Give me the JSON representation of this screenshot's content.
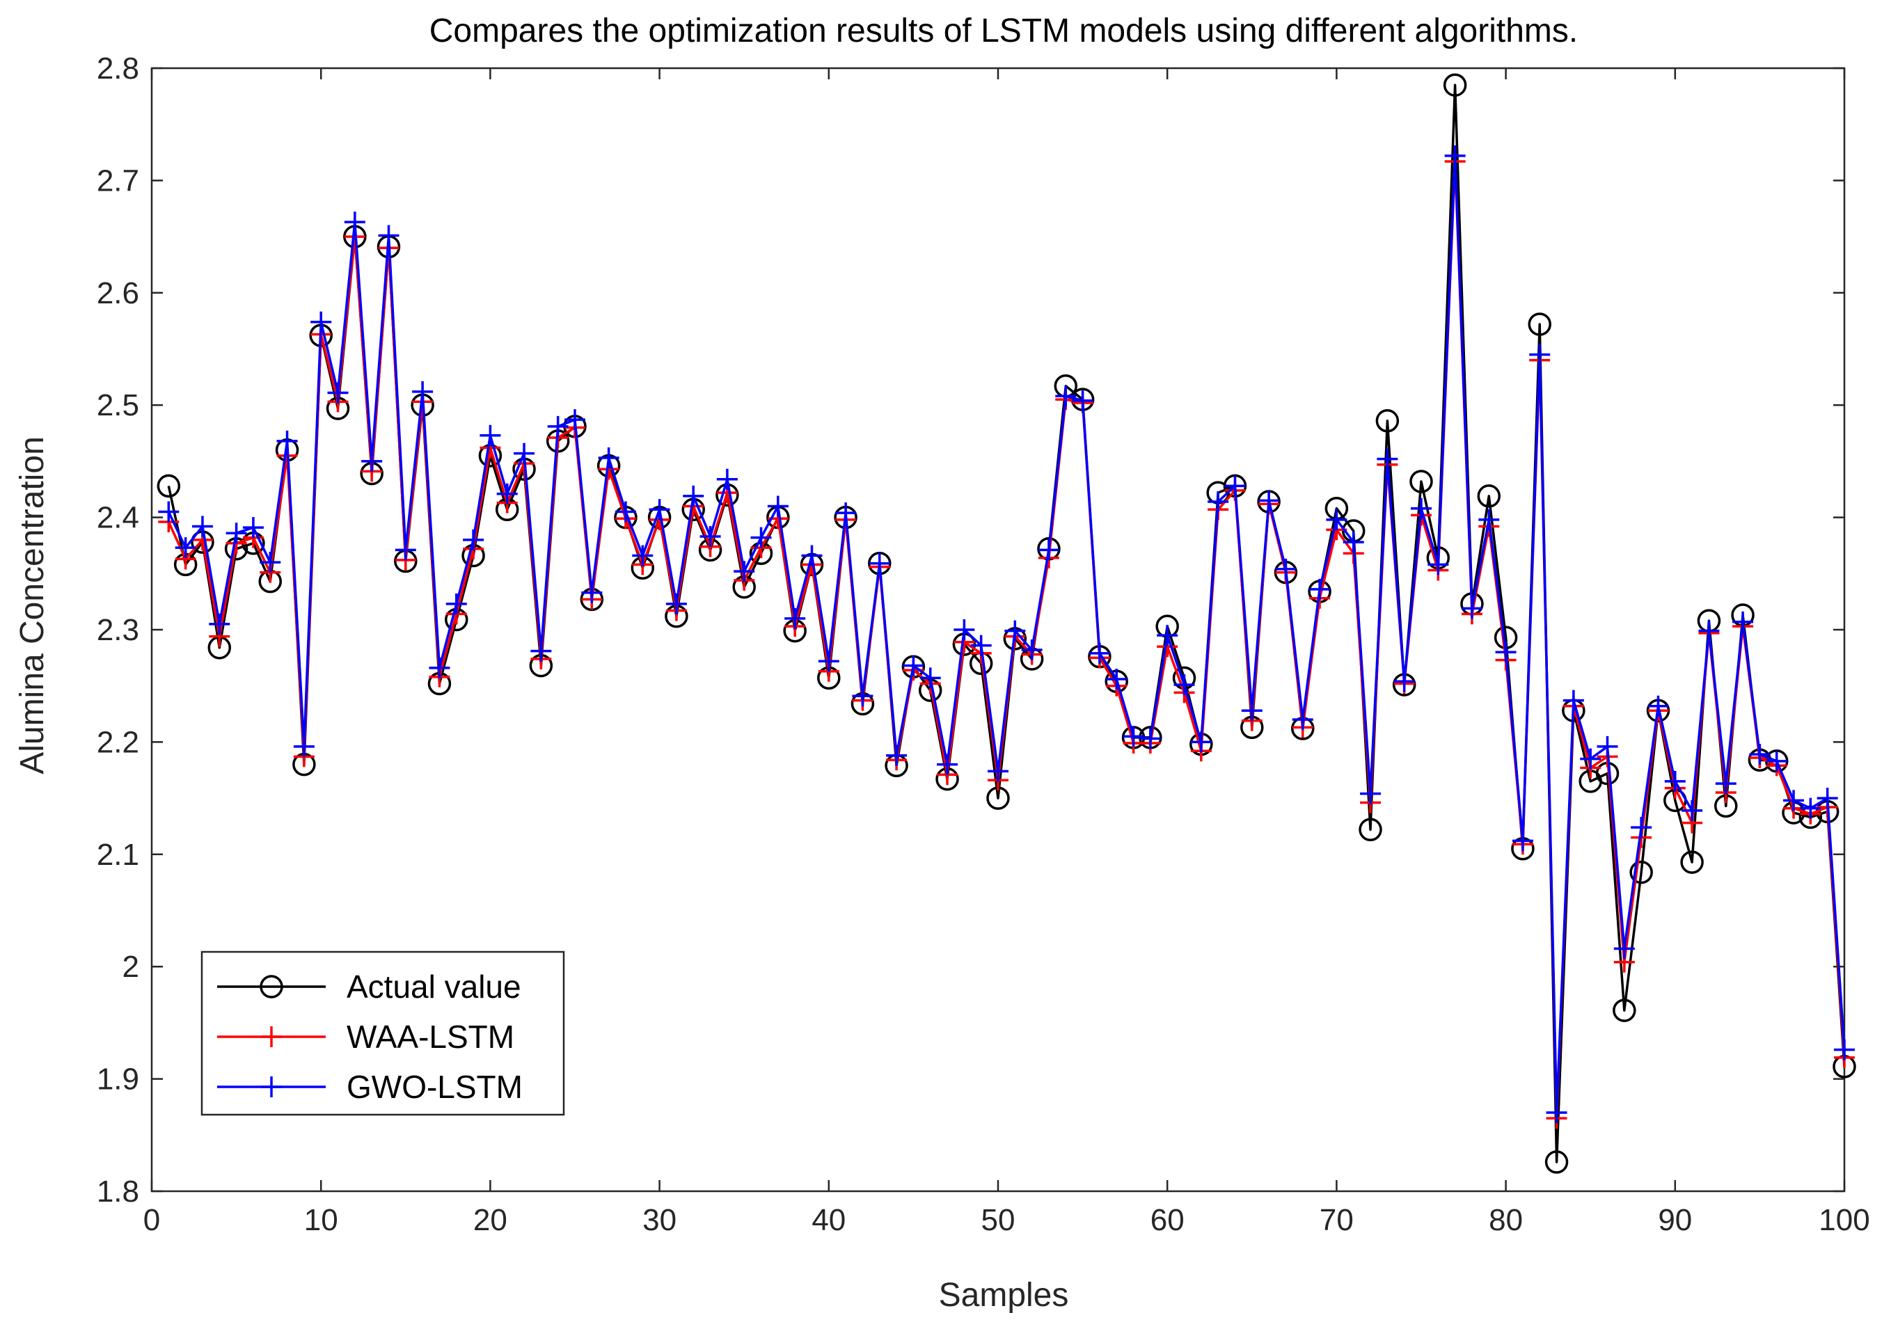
{
  "chart_data": {
    "type": "line",
    "title": "Compares the optimization results of LSTM models using different algorithms.",
    "xlabel": "Samples",
    "ylabel": "Alumina Concentration",
    "xlim": [
      0,
      100
    ],
    "ylim": [
      1.8,
      2.8
    ],
    "xticks": [
      0,
      10,
      20,
      30,
      40,
      50,
      60,
      70,
      80,
      90,
      100
    ],
    "yticks": [
      1.8,
      1.9,
      2,
      2.1,
      2.2,
      2.3,
      2.4,
      2.5,
      2.6,
      2.7,
      2.8
    ],
    "xtick_labels": [
      "0",
      "10",
      "20",
      "30",
      "40",
      "50",
      "60",
      "70",
      "80",
      "90",
      "100"
    ],
    "ytick_labels": [
      "1.8",
      "1.9",
      "2",
      "2.1",
      "2.2",
      "2.3",
      "2.4",
      "2.5",
      "2.6",
      "2.7",
      "2.8"
    ],
    "grid": false,
    "legend_position": "bottom-left",
    "x": [
      1,
      2,
      3,
      4,
      5,
      6,
      7,
      8,
      9,
      10,
      11,
      12,
      13,
      14,
      15,
      16,
      17,
      18,
      19,
      20,
      21,
      22,
      23,
      24,
      25,
      26,
      27,
      28,
      29,
      30,
      31,
      32,
      33,
      34,
      35,
      36,
      37,
      38,
      39,
      40,
      41,
      42,
      43,
      44,
      45,
      46,
      47,
      48,
      49,
      50,
      51,
      52,
      53,
      54,
      55,
      56,
      57,
      58,
      59,
      60,
      61,
      62,
      63,
      64,
      65,
      66,
      67,
      68,
      69,
      70,
      71,
      72,
      73,
      74,
      75,
      76,
      77,
      78,
      79,
      80,
      81,
      82,
      83,
      84,
      85,
      86,
      87,
      88,
      89,
      90,
      91,
      92,
      93,
      94,
      95,
      96,
      97,
      98,
      99,
      100
    ],
    "series": [
      {
        "name": "Actual value",
        "color": "#000000",
        "marker": "circle",
        "values": [
          2.428,
          2.358,
          2.378,
          2.284,
          2.372,
          2.377,
          2.343,
          2.46,
          2.18,
          2.562,
          2.497,
          2.65,
          2.439,
          2.641,
          2.361,
          2.5,
          2.252,
          2.309,
          2.366,
          2.455,
          2.407,
          2.443,
          2.268,
          2.468,
          2.481,
          2.327,
          2.446,
          2.4,
          2.355,
          2.4,
          2.312,
          2.407,
          2.371,
          2.42,
          2.338,
          2.368,
          2.4,
          2.299,
          2.358,
          2.257,
          2.4,
          2.234,
          2.359,
          2.179,
          2.267,
          2.246,
          2.167,
          2.287,
          2.27,
          2.15,
          2.292,
          2.274,
          2.372,
          2.517,
          2.505,
          2.276,
          2.254,
          2.204,
          2.204,
          2.303,
          2.257,
          2.198,
          2.422,
          2.428,
          2.213,
          2.414,
          2.351,
          2.212,
          2.334,
          2.408,
          2.388,
          2.122,
          2.486,
          2.251,
          2.432,
          2.364,
          2.785,
          2.323,
          2.419,
          2.293,
          2.105,
          2.572,
          1.826,
          2.228,
          2.165,
          2.172,
          1.961,
          2.084,
          2.228,
          2.148,
          2.093,
          2.308,
          2.143,
          2.313,
          2.184,
          2.183,
          2.137,
          2.133,
          2.138,
          1.911
        ]
      },
      {
        "name": "WAA-LSTM",
        "color": "#ff0000",
        "marker": "plus",
        "values": [
          2.396,
          2.363,
          2.38,
          2.294,
          2.377,
          2.382,
          2.351,
          2.455,
          2.187,
          2.563,
          2.503,
          2.65,
          2.441,
          2.64,
          2.362,
          2.503,
          2.258,
          2.314,
          2.372,
          2.462,
          2.413,
          2.448,
          2.274,
          2.471,
          2.48,
          2.327,
          2.443,
          2.399,
          2.358,
          2.398,
          2.317,
          2.41,
          2.374,
          2.422,
          2.344,
          2.373,
          2.399,
          2.303,
          2.358,
          2.263,
          2.398,
          2.237,
          2.356,
          2.184,
          2.264,
          2.252,
          2.171,
          2.289,
          2.279,
          2.166,
          2.294,
          2.278,
          2.364,
          2.505,
          2.502,
          2.275,
          2.25,
          2.199,
          2.199,
          2.285,
          2.244,
          2.192,
          2.407,
          2.424,
          2.219,
          2.412,
          2.351,
          2.213,
          2.328,
          2.389,
          2.368,
          2.146,
          2.447,
          2.252,
          2.402,
          2.353,
          2.717,
          2.314,
          2.392,
          2.273,
          2.109,
          2.54,
          1.865,
          2.232,
          2.177,
          2.187,
          2.004,
          2.115,
          2.228,
          2.159,
          2.128,
          2.297,
          2.155,
          2.303,
          2.186,
          2.179,
          2.141,
          2.136,
          2.142,
          1.919
        ]
      },
      {
        "name": "GWO-LSTM",
        "color": "#0000ff",
        "marker": "plus",
        "values": [
          2.405,
          2.373,
          2.392,
          2.305,
          2.386,
          2.391,
          2.36,
          2.468,
          2.196,
          2.574,
          2.511,
          2.663,
          2.45,
          2.651,
          2.371,
          2.512,
          2.266,
          2.323,
          2.38,
          2.473,
          2.421,
          2.457,
          2.281,
          2.481,
          2.487,
          2.333,
          2.453,
          2.405,
          2.366,
          2.407,
          2.323,
          2.419,
          2.383,
          2.434,
          2.352,
          2.382,
          2.41,
          2.31,
          2.366,
          2.272,
          2.404,
          2.241,
          2.359,
          2.188,
          2.268,
          2.257,
          2.18,
          2.3,
          2.286,
          2.174,
          2.299,
          2.282,
          2.371,
          2.508,
          2.504,
          2.279,
          2.256,
          2.205,
          2.203,
          2.295,
          2.251,
          2.2,
          2.414,
          2.428,
          2.228,
          2.415,
          2.354,
          2.22,
          2.336,
          2.398,
          2.378,
          2.154,
          2.452,
          2.254,
          2.408,
          2.358,
          2.722,
          2.319,
          2.398,
          2.28,
          2.112,
          2.545,
          1.87,
          2.237,
          2.185,
          2.196,
          2.016,
          2.124,
          2.232,
          2.165,
          2.139,
          2.299,
          2.163,
          2.307,
          2.189,
          2.183,
          2.148,
          2.141,
          2.15,
          1.926
        ]
      }
    ]
  }
}
